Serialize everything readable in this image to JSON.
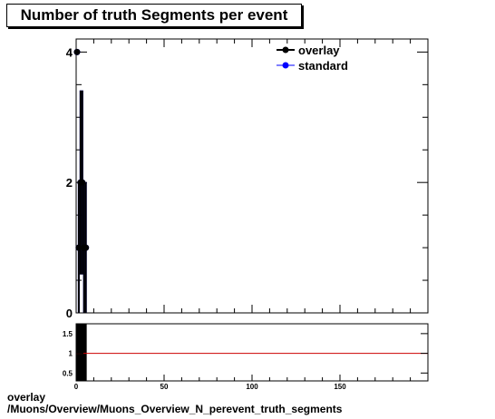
{
  "title": "Number of truth Segments per event",
  "footer": {
    "line1": "overlay",
    "line2": "/Muons/Overview/Muons_Overview_N_perevent_truth_segments"
  },
  "colors": {
    "overlay": "#000000",
    "standard": "#0000ff",
    "ratio_line": "#cc0000"
  },
  "chart_data": [
    {
      "type": "scatter",
      "title": "Number of truth Segments per event",
      "xlim": [
        0,
        200
      ],
      "ylim": [
        0,
        4.2
      ],
      "yticks": [
        0,
        2,
        4
      ],
      "legend": "top-right",
      "grid": false,
      "series": [
        {
          "name": "overlay",
          "x": [
            0.5,
            1.5,
            2.5,
            3.5,
            4.5,
            5.5
          ],
          "y": [
            4,
            1,
            2,
            2,
            1,
            1
          ],
          "yerr": [
            0,
            1,
            1.41,
            1.41,
            1,
            1
          ]
        },
        {
          "name": "standard",
          "x": [
            0.5,
            1.5,
            2.5,
            3.5,
            4.5,
            5.5
          ],
          "y": [
            4,
            1,
            2,
            2,
            1,
            1
          ],
          "yerr": [
            0,
            1,
            1.41,
            1.41,
            1,
            1
          ]
        }
      ]
    },
    {
      "type": "line",
      "xlim": [
        0,
        200
      ],
      "ylim": [
        0.3,
        1.75
      ],
      "xticks": [
        0,
        50,
        100,
        150
      ],
      "yticks": [
        0.5,
        1,
        1.5
      ],
      "ytick_labels": [
        "0.5",
        "1",
        "1.5"
      ],
      "series": [
        {
          "name": "ratio",
          "x": [
            0,
            200
          ],
          "y": [
            1,
            1
          ]
        }
      ],
      "dark_bins_x": [
        0,
        6
      ]
    }
  ]
}
